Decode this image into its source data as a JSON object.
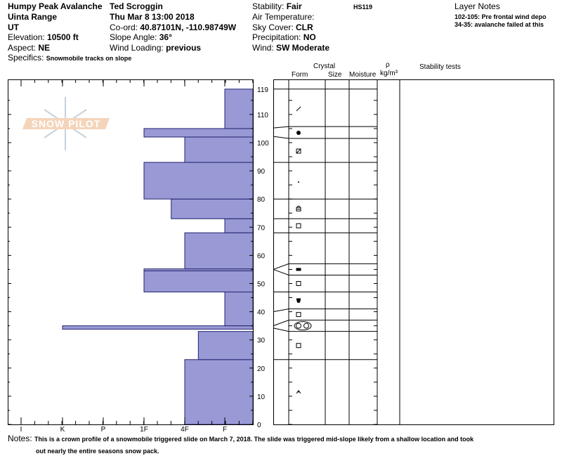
{
  "header": {
    "col1": {
      "title": "Humpy Peak Avalanche",
      "range": "Uinta Range",
      "state": "UT",
      "elevation_label": "Elevation: ",
      "elevation": "10500 ft",
      "aspect_label": "Aspect: ",
      "aspect": "NE",
      "specifics_label": "Specifics: ",
      "specifics": "Snowmobile tracks on slope"
    },
    "col2": {
      "observer": "Ted Scroggin",
      "datetime": "Thu Mar 8 13:00 2018",
      "coord_label": "Co-ord: ",
      "coord": "40.87101N, -110.98749W",
      "slope_label": "Slope Angle: ",
      "slope": "36°",
      "wind_loading_label": "Wind Loading: ",
      "wind_loading": "previous"
    },
    "col3": {
      "stability_label": "Stability: ",
      "stability": "Fair",
      "air_temp_label": "Air Temperature:",
      "sky_label": "Sky Cover: ",
      "sky": "CLR",
      "precip_label": "Precipitation: ",
      "precip": "NO",
      "wind_label": "Wind:  ",
      "wind": "SW Moderate"
    },
    "hs": "HS119",
    "layer_notes_title": "Layer Notes",
    "layer_notes": [
      "102-105: Pre frontal wind depo",
      "34-35: avalanche failed at this"
    ]
  },
  "columns": {
    "crystal": "Crystal",
    "form": "Form",
    "size": "Size",
    "moisture": "Moisture",
    "rho": "ρ",
    "density_unit": "kg/m³",
    "stability_tests": "Stability tests"
  },
  "logo": {
    "text": "SNOW PILOT"
  },
  "notes": {
    "label": "Notes:",
    "line1": "This is a crown profile of a snowmobile triggered slide on March 7, 2018.  The slide was triggered mid-slope likely from a shallow location and took",
    "line2": "out nearly the entire seasons snow pack."
  },
  "chart_data": {
    "type": "bar",
    "hardness_ticks": [
      "I",
      "K",
      "P",
      "1F",
      "4F",
      "F"
    ],
    "height_ticks": [
      "0",
      "10",
      "20",
      "30",
      "40",
      "50",
      "60",
      "70",
      "80",
      "90",
      "100",
      "110",
      "119"
    ],
    "ylim": [
      0,
      119
    ],
    "fill_color": "#9999d6",
    "layers": [
      {
        "bottom": 0,
        "top": 23,
        "hardness": "4F"
      },
      {
        "bottom": 23,
        "top": 33,
        "hardness": "4F-"
      },
      {
        "bottom": 33.8,
        "top": 35,
        "hardness": "K"
      },
      {
        "bottom": 35,
        "top": 47,
        "hardness": "F"
      },
      {
        "bottom": 47,
        "top": 54.5,
        "hardness": "1F"
      },
      {
        "bottom": 54.5,
        "top": 55.2,
        "hardness": "1F"
      },
      {
        "bottom": 55.2,
        "top": 68,
        "hardness": "4F"
      },
      {
        "bottom": 68,
        "top": 73,
        "hardness": "F"
      },
      {
        "bottom": 73,
        "top": 80,
        "hardness": "4F+"
      },
      {
        "bottom": 80,
        "top": 93,
        "hardness": "1F"
      },
      {
        "bottom": 93,
        "top": 102,
        "hardness": "4F"
      },
      {
        "bottom": 102,
        "top": 105,
        "hardness": "1F"
      },
      {
        "bottom": 105,
        "top": 119,
        "hardness": "F"
      }
    ],
    "crystal_boundaries": [
      {
        "axis": 119,
        "col": 119
      },
      {
        "axis": 105.2,
        "col": 105.7
      },
      {
        "axis": 102.2,
        "col": 101.5
      },
      {
        "axis": 93,
        "col": 93
      },
      {
        "axis": 80,
        "col": 80
      },
      {
        "axis": 73,
        "col": 73
      },
      {
        "axis": 68,
        "col": 68
      },
      {
        "axis": 55,
        "col": 57
      },
      {
        "axis": 55,
        "col": 53
      },
      {
        "axis": 47,
        "col": 47
      },
      {
        "axis": 40,
        "col": 41
      },
      {
        "axis": 35,
        "col": 37
      },
      {
        "axis": 34.2,
        "col": 33
      },
      {
        "axis": 23,
        "col": 23
      }
    ],
    "grain_forms": [
      {
        "height": 112,
        "icon": "decomposing-fragments-icon"
      },
      {
        "height": 103.5,
        "icon": "melt-freeze-crust-icon"
      },
      {
        "height": 97,
        "icon": "rounding-faceted-icon"
      },
      {
        "height": 86,
        "icon": "small-grain-icon"
      },
      {
        "height": 76.5,
        "icon": "faceted-rounded-icon"
      },
      {
        "height": 70.5,
        "icon": "faceted-crystal-icon"
      },
      {
        "height": 55,
        "icon": "ice-formation-icon"
      },
      {
        "height": 50,
        "icon": "faceted-crystal-icon"
      },
      {
        "height": 44,
        "icon": "melt-form-icon"
      },
      {
        "height": 39,
        "icon": "faceted-crystal-icon"
      },
      {
        "height": 35,
        "icon": "clustered-rounded-icon"
      },
      {
        "height": 28,
        "icon": "faceted-crystal-icon"
      },
      {
        "height": 11.5,
        "icon": "depth-hoar-icon"
      }
    ]
  }
}
